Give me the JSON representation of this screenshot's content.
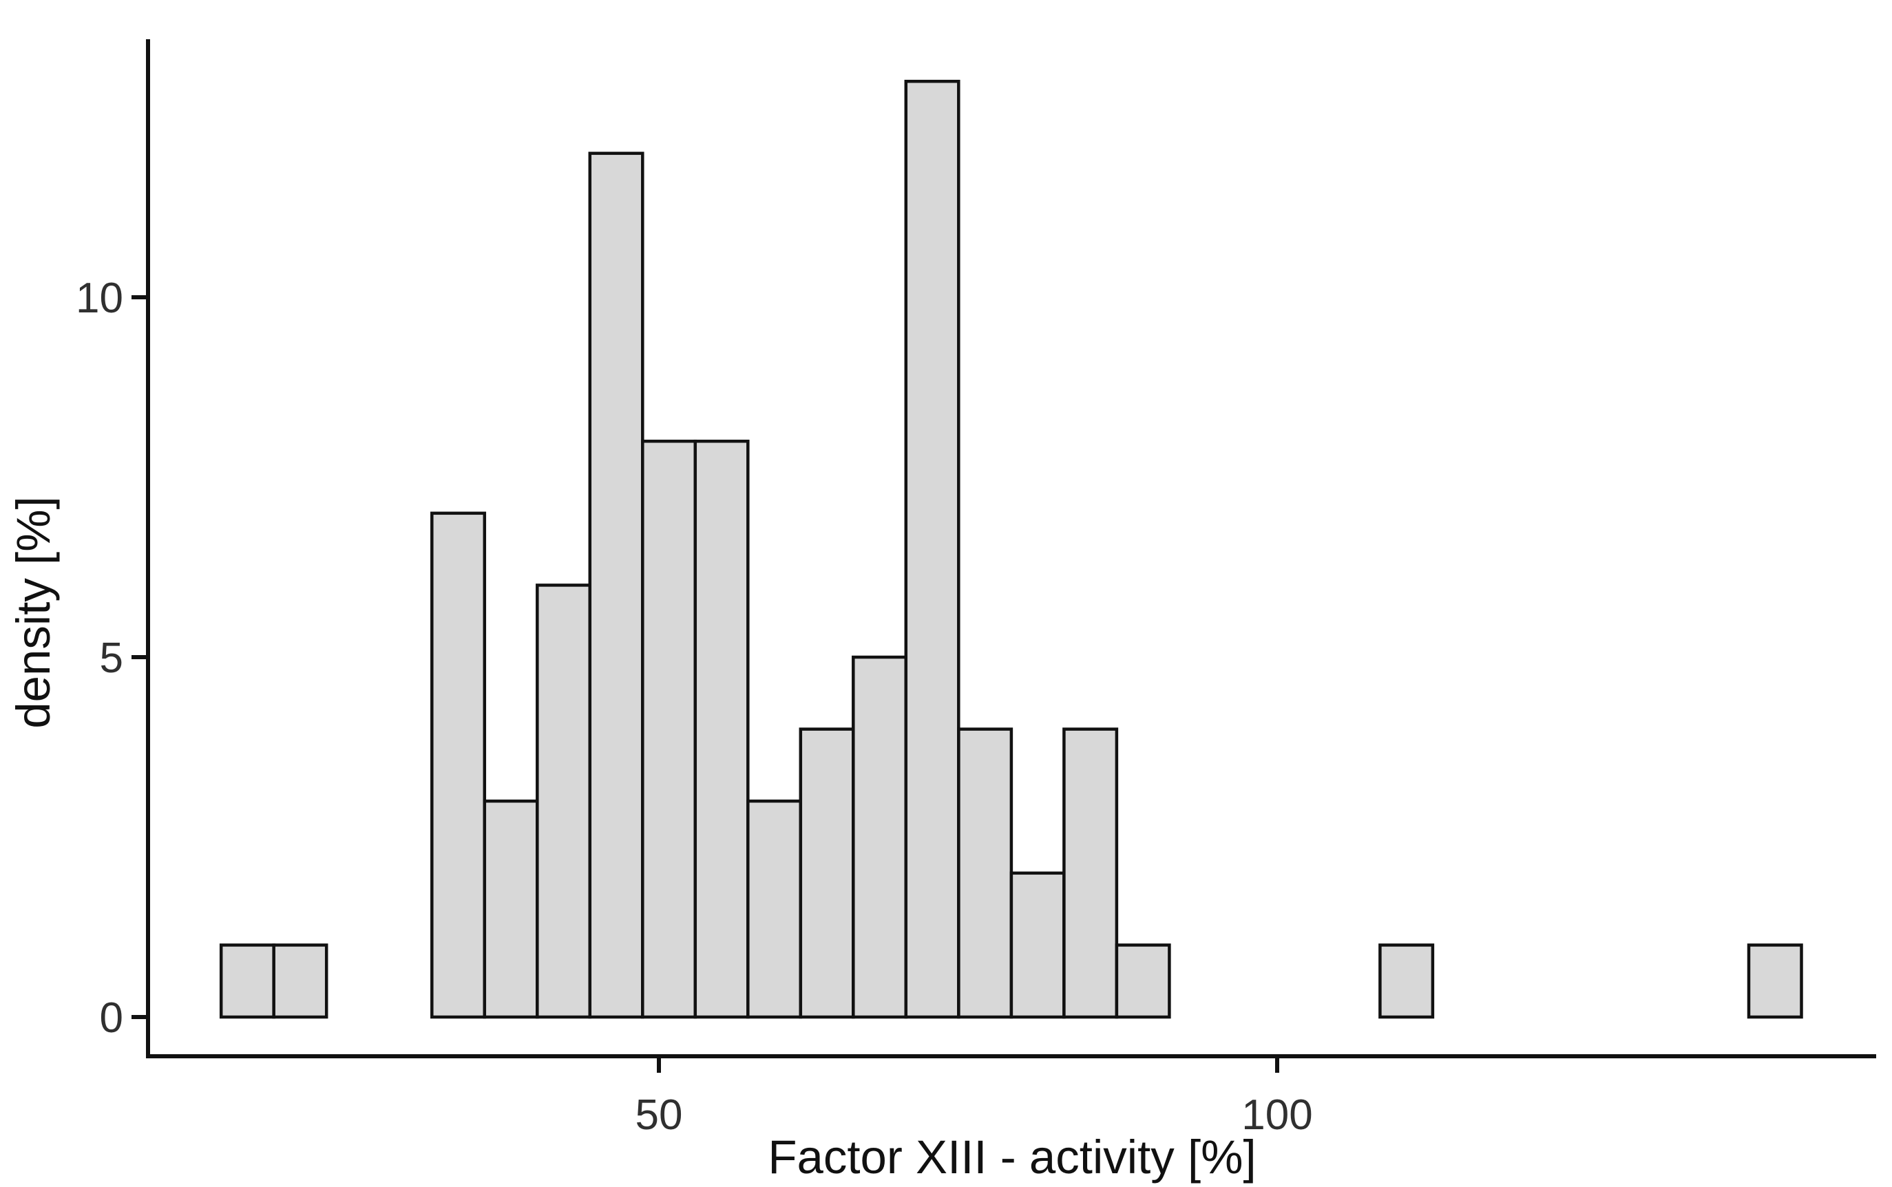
{
  "chart_data": {
    "type": "bar",
    "subtype": "histogram",
    "title": "",
    "xlabel": "Factor XIII - activity [%]",
    "ylabel": "density [%]",
    "x_ticks": [
      {
        "value": 50,
        "label": "50"
      },
      {
        "value": 100,
        "label": "100"
      }
    ],
    "y_ticks": [
      {
        "value": 0,
        "label": "0"
      },
      {
        "value": 5,
        "label": "5"
      },
      {
        "value": 10,
        "label": "10"
      }
    ],
    "xlim": [
      8.7,
      148.4
    ],
    "ylim": [
      0,
      13.6
    ],
    "grid": false,
    "legend_position": "none",
    "bins": {
      "start": 14.6,
      "width": 4.26,
      "counts": [
        1,
        1,
        0,
        0,
        7,
        3,
        6,
        12,
        8,
        8,
        3,
        4,
        5,
        13,
        4,
        2,
        4,
        1,
        0,
        0,
        0,
        0,
        1,
        0,
        0,
        0,
        0,
        0,
        0,
        1
      ]
    },
    "colors": {
      "bar_fill": "#d8d8d8",
      "bar_stroke": "#111111",
      "axis_line": "#111111",
      "tick_text": "#303030",
      "title_text": "#111111",
      "background": "#ffffff"
    }
  }
}
